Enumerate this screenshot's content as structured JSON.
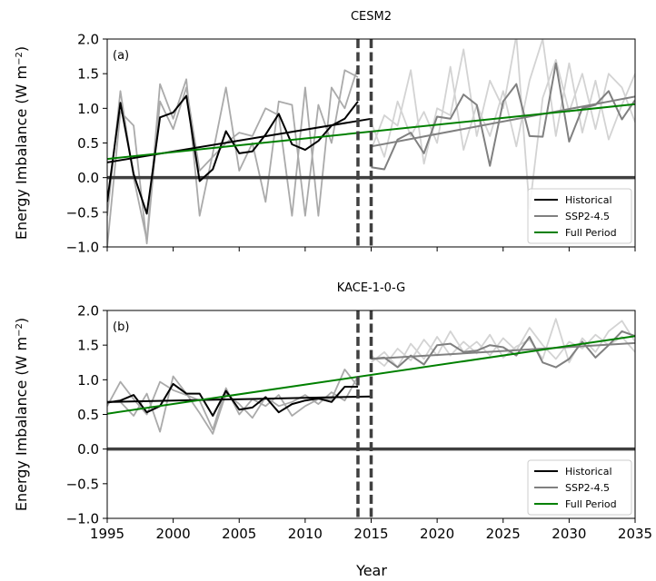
{
  "figure": {
    "ylabel": "Energy Imbalance (W m$^{-2}$)",
    "xlabel": "Year"
  },
  "chart_data": [
    {
      "type": "line",
      "title": "CESM2",
      "panel_label": "(a)",
      "xlim": [
        1995,
        2035
      ],
      "ylim": [
        -1.0,
        2.0
      ],
      "xticks": [
        1995,
        2000,
        2005,
        2010,
        2015,
        2020,
        2025,
        2030,
        2035
      ],
      "yticks": [
        -1.0,
        -0.5,
        0.0,
        0.5,
        1.0,
        1.5,
        2.0
      ],
      "vlines": [
        2014,
        2015
      ],
      "hline": 0.0,
      "legend_position": "lower-right",
      "colors": {
        "historical": "#000000",
        "ssp": "#808080",
        "full": "#008000",
        "member": "#aaaaaa",
        "member_light": "#d3d3d3",
        "zero": "#404040",
        "vline": "#404040"
      },
      "background_members": [
        {
          "x": [
            1995,
            1996,
            1997,
            1998,
            1999,
            2000,
            2001,
            2002,
            2003,
            2004,
            2005,
            2006,
            2007,
            2008,
            2009,
            2010,
            2011,
            2012,
            2013,
            2014
          ],
          "y": [
            -0.55,
            1.25,
            0.0,
            -0.9,
            1.35,
            0.85,
            1.42,
            -0.55,
            0.35,
            1.3,
            0.1,
            0.5,
            -0.35,
            1.1,
            1.05,
            -0.55,
            1.05,
            0.5,
            1.55,
            1.45
          ]
        },
        {
          "x": [
            1995,
            1996,
            1997,
            1998,
            1999,
            2000,
            2001,
            2002,
            2003,
            2004,
            2005,
            2006,
            2007,
            2008,
            2009,
            2010,
            2011,
            2012,
            2013,
            2014
          ],
          "y": [
            -1.0,
            0.95,
            0.75,
            -0.95,
            1.1,
            0.7,
            1.3,
            0.1,
            0.3,
            0.5,
            0.65,
            0.6,
            1.0,
            0.9,
            -0.55,
            1.3,
            -0.55,
            1.3,
            1.0,
            1.6
          ]
        },
        {
          "x": [
            2015,
            2016,
            2017,
            2018,
            2019,
            2020,
            2021,
            2022,
            2023,
            2024,
            2025,
            2026,
            2027,
            2028,
            2029,
            2030,
            2031,
            2032,
            2033,
            2034,
            2035
          ],
          "y": [
            0.4,
            0.9,
            0.75,
            1.55,
            0.2,
            1.0,
            0.9,
            1.85,
            0.6,
            1.4,
            1.0,
            2.05,
            -0.45,
            1.15,
            1.7,
            0.95,
            1.5,
            0.7,
            1.5,
            1.3,
            0.8
          ]
        },
        {
          "x": [
            2015,
            2016,
            2017,
            2018,
            2019,
            2020,
            2021,
            2022,
            2023,
            2024,
            2025,
            2026,
            2027,
            2028,
            2029,
            2030,
            2031,
            2032,
            2033,
            2034,
            2035
          ],
          "y": [
            0.8,
            0.3,
            1.1,
            0.6,
            0.95,
            0.5,
            1.6,
            0.4,
            1.05,
            0.6,
            1.25,
            0.45,
            1.4,
            2.0,
            0.6,
            1.65,
            0.65,
            1.4,
            0.55,
            1.05,
            1.5
          ]
        }
      ],
      "series": [
        {
          "name": "Historical",
          "x": [
            1995,
            1996,
            1997,
            1998,
            1999,
            2000,
            2001,
            2002,
            2003,
            2004,
            2005,
            2006,
            2007,
            2008,
            2009,
            2010,
            2011,
            2012,
            2013,
            2014
          ],
          "y": [
            -0.35,
            1.08,
            0.05,
            -0.52,
            0.87,
            0.94,
            1.18,
            -0.05,
            0.12,
            0.67,
            0.35,
            0.38,
            0.62,
            0.92,
            0.48,
            0.4,
            0.53,
            0.75,
            0.85,
            1.1
          ]
        },
        {
          "name": "SSP2-4.5",
          "x": [
            2015,
            2016,
            2017,
            2018,
            2019,
            2020,
            2021,
            2022,
            2023,
            2024,
            2025,
            2026,
            2027,
            2028,
            2029,
            2030,
            2031,
            2032,
            2033,
            2034,
            2035
          ],
          "y": [
            0.15,
            0.12,
            0.55,
            0.65,
            0.35,
            0.88,
            0.85,
            1.2,
            1.05,
            0.17,
            1.1,
            1.35,
            0.6,
            0.59,
            1.65,
            0.52,
            1.0,
            1.05,
            1.25,
            0.84,
            1.12
          ]
        },
        {
          "name": "Full Period",
          "x": [
            1995,
            2035
          ],
          "y": [
            0.27,
            1.06
          ]
        }
      ],
      "trend_lines": [
        {
          "series": "Historical",
          "x": [
            1995,
            2015
          ],
          "y": [
            0.22,
            0.85
          ]
        },
        {
          "series": "SSP2-4.5",
          "x": [
            2015,
            2035
          ],
          "y": [
            0.45,
            1.17
          ]
        }
      ]
    },
    {
      "type": "line",
      "title": "KACE-1-0-G",
      "panel_label": "(b)",
      "xlim": [
        1995,
        2035
      ],
      "ylim": [
        -1.0,
        2.0
      ],
      "xticks": [
        1995,
        2000,
        2005,
        2010,
        2015,
        2020,
        2025,
        2030,
        2035
      ],
      "yticks": [
        -1.0,
        -0.5,
        0.0,
        0.5,
        1.0,
        1.5,
        2.0
      ],
      "vlines": [
        2014,
        2015
      ],
      "hline": 0.0,
      "legend_position": "lower-right",
      "colors": {
        "historical": "#000000",
        "ssp": "#808080",
        "full": "#008000",
        "member": "#aaaaaa",
        "member_light": "#d3d3d3",
        "zero": "#404040",
        "vline": "#404040"
      },
      "background_members": [
        {
          "x": [
            1995,
            1996,
            1997,
            1998,
            1999,
            2000,
            2001,
            2002,
            2003,
            2004,
            2005,
            2006,
            2007,
            2008,
            2009,
            2010,
            2011,
            2012,
            2013,
            2014
          ],
          "y": [
            0.62,
            0.97,
            0.72,
            0.5,
            0.97,
            0.85,
            0.78,
            0.7,
            0.28,
            0.88,
            0.5,
            0.72,
            0.62,
            0.78,
            0.48,
            0.62,
            0.72,
            0.72,
            1.15,
            0.9
          ]
        },
        {
          "x": [
            1995,
            1996,
            1997,
            1998,
            1999,
            2000,
            2001,
            2002,
            2003,
            2004,
            2005,
            2006,
            2007,
            2008,
            2009,
            2010,
            2011,
            2012,
            2013,
            2014
          ],
          "y": [
            0.68,
            0.68,
            0.48,
            0.8,
            0.25,
            1.05,
            0.8,
            0.52,
            0.22,
            0.8,
            0.65,
            0.45,
            0.75,
            0.62,
            0.68,
            0.78,
            0.65,
            0.82,
            0.7,
            1.05
          ]
        },
        {
          "x": [
            2015,
            2016,
            2017,
            2018,
            2019,
            2020,
            2021,
            2022,
            2023,
            2024,
            2025,
            2026,
            2027,
            2028,
            2029,
            2030,
            2031,
            2032,
            2033,
            2034,
            2035
          ],
          "y": [
            1.25,
            1.4,
            1.18,
            1.52,
            1.3,
            1.62,
            1.35,
            1.55,
            1.38,
            1.65,
            1.32,
            1.48,
            1.58,
            1.3,
            1.88,
            1.25,
            1.6,
            1.4,
            1.7,
            1.85,
            1.55
          ]
        },
        {
          "x": [
            2015,
            2016,
            2017,
            2018,
            2019,
            2020,
            2021,
            2022,
            2023,
            2024,
            2025,
            2026,
            2027,
            2028,
            2029,
            2030,
            2031,
            2032,
            2033,
            2034,
            2035
          ],
          "y": [
            1.35,
            1.2,
            1.45,
            1.28,
            1.58,
            1.35,
            1.7,
            1.4,
            1.55,
            1.35,
            1.6,
            1.42,
            1.75,
            1.5,
            1.3,
            1.55,
            1.45,
            1.65,
            1.5,
            1.62,
            1.4
          ]
        }
      ],
      "series": [
        {
          "name": "Historical",
          "x": [
            1995,
            1996,
            1997,
            1998,
            1999,
            2000,
            2001,
            2002,
            2003,
            2004,
            2005,
            2006,
            2007,
            2008,
            2009,
            2010,
            2011,
            2012,
            2013,
            2014
          ],
          "y": [
            0.67,
            0.7,
            0.78,
            0.53,
            0.62,
            0.94,
            0.8,
            0.8,
            0.48,
            0.84,
            0.57,
            0.6,
            0.75,
            0.53,
            0.65,
            0.7,
            0.73,
            0.68,
            0.9,
            0.9
          ]
        },
        {
          "name": "SSP2-4.5",
          "x": [
            2015,
            2016,
            2017,
            2018,
            2019,
            2020,
            2021,
            2022,
            2023,
            2024,
            2025,
            2026,
            2027,
            2028,
            2029,
            2030,
            2031,
            2032,
            2033,
            2034,
            2035
          ],
          "y": [
            1.3,
            1.32,
            1.18,
            1.35,
            1.22,
            1.5,
            1.52,
            1.4,
            1.42,
            1.5,
            1.47,
            1.35,
            1.62,
            1.25,
            1.18,
            1.3,
            1.55,
            1.32,
            1.5,
            1.7,
            1.63
          ]
        },
        {
          "name": "Full Period",
          "x": [
            1995,
            2035
          ],
          "y": [
            0.51,
            1.63
          ]
        }
      ],
      "trend_lines": [
        {
          "series": "Historical",
          "x": [
            1995,
            2015
          ],
          "y": [
            0.68,
            0.76
          ]
        },
        {
          "series": "SSP2-4.5",
          "x": [
            2015,
            2035
          ],
          "y": [
            1.3,
            1.53
          ]
        }
      ]
    }
  ]
}
